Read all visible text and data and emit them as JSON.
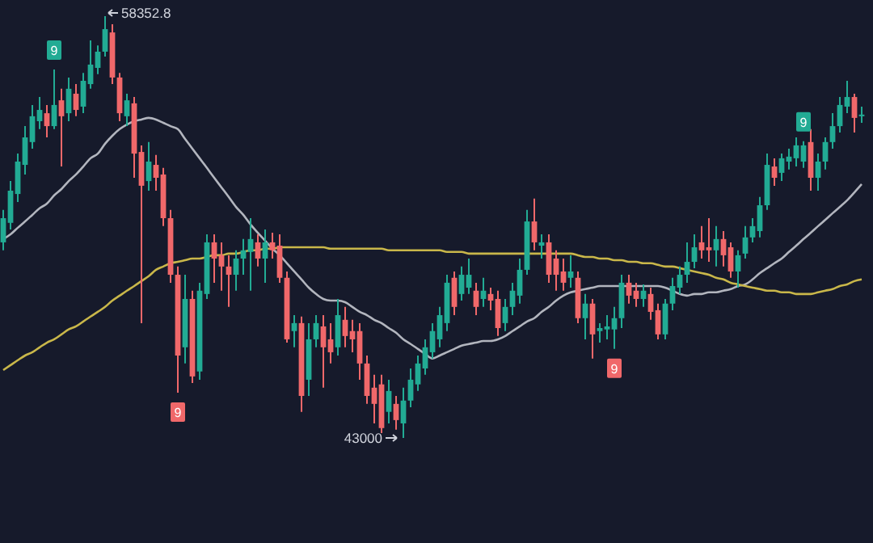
{
  "chart_data": {
    "type": "candlestick",
    "categories": [
      null,
      null,
      null,
      null,
      null,
      null,
      null,
      null,
      null,
      null,
      null,
      null,
      null,
      null,
      null,
      null,
      null,
      null,
      null,
      null,
      null,
      null,
      null,
      null,
      null,
      null,
      null,
      null,
      null,
      null,
      null,
      null,
      null,
      null,
      null,
      null,
      null,
      null,
      null,
      null,
      null,
      null,
      null,
      null,
      null,
      null,
      null,
      null,
      null,
      null,
      null,
      null,
      null,
      null,
      null,
      null,
      null,
      null,
      null,
      null,
      null,
      null,
      null,
      null,
      null,
      null,
      null,
      null,
      null,
      null,
      null,
      null,
      null,
      null,
      null,
      null,
      null,
      null,
      null,
      null,
      null,
      null,
      null,
      null,
      null,
      null,
      null,
      null,
      null,
      null,
      null,
      null,
      null,
      null,
      null,
      null,
      null,
      null,
      null,
      null,
      null,
      null,
      null,
      null,
      null,
      null,
      null,
      null,
      null,
      null,
      null,
      null,
      null,
      null,
      null,
      null,
      null,
      null,
      null
    ],
    "ohlc": [
      [
        50120,
        51300,
        49830,
        51000
      ],
      [
        50830,
        52350,
        50590,
        52000
      ],
      [
        51880,
        53350,
        51590,
        53060
      ],
      [
        52940,
        54350,
        52590,
        53940
      ],
      [
        53770,
        55120,
        53530,
        54710
      ],
      [
        54530,
        55410,
        54240,
        54940
      ],
      [
        54820,
        55120,
        53940,
        54350
      ],
      [
        54350,
        56410,
        54240,
        55120
      ],
      [
        55290,
        55710,
        52880,
        54710
      ],
      [
        54820,
        56120,
        54530,
        55710
      ],
      [
        55530,
        55880,
        54710,
        54940
      ],
      [
        55060,
        56290,
        54820,
        56000
      ],
      [
        55880,
        57470,
        55710,
        56590
      ],
      [
        56470,
        57290,
        56240,
        57060
      ],
      [
        57060,
        58352.8,
        56880,
        57880
      ],
      [
        57760,
        58060,
        55880,
        56120
      ],
      [
        56120,
        56290,
        54530,
        54820
      ],
      [
        54710,
        55530,
        54350,
        55290
      ],
      [
        55180,
        55410,
        52470,
        53350
      ],
      [
        53410,
        53650,
        47180,
        52180
      ],
      [
        52350,
        53770,
        52000,
        53060
      ],
      [
        52940,
        53300,
        52000,
        52470
      ],
      [
        52590,
        52830,
        50710,
        51000
      ],
      [
        51000,
        51300,
        48650,
        48940
      ],
      [
        48940,
        49240,
        44650,
        46000
      ],
      [
        46300,
        48940,
        45710,
        48060
      ],
      [
        48060,
        48360,
        45000,
        45240
      ],
      [
        45420,
        48650,
        45120,
        48360
      ],
      [
        48240,
        50410,
        48060,
        50120
      ],
      [
        50120,
        50410,
        48650,
        49530
      ],
      [
        49650,
        50120,
        48360,
        49240
      ],
      [
        49240,
        49650,
        47770,
        48940
      ],
      [
        48940,
        49830,
        48360,
        49530
      ],
      [
        49530,
        50240,
        48940,
        49830
      ],
      [
        49770,
        51000,
        48360,
        50240
      ],
      [
        50120,
        50410,
        49240,
        49530
      ],
      [
        49530,
        50590,
        48650,
        50120
      ],
      [
        50120,
        50470,
        49530,
        49830
      ],
      [
        50000,
        50410,
        48650,
        48830
      ],
      [
        48830,
        49060,
        46470,
        46590
      ],
      [
        46890,
        47470,
        46300,
        47180
      ],
      [
        47180,
        47420,
        43950,
        44530
      ],
      [
        45120,
        47180,
        44530,
        46590
      ],
      [
        46590,
        47470,
        46300,
        47180
      ],
      [
        47060,
        47470,
        44830,
        46300
      ],
      [
        46590,
        47180,
        45710,
        46120
      ],
      [
        46300,
        48060,
        46000,
        47470
      ],
      [
        47300,
        47770,
        46300,
        46710
      ],
      [
        46890,
        47300,
        46120,
        46590
      ],
      [
        46890,
        47180,
        45120,
        45710
      ],
      [
        45710,
        46000,
        44240,
        44530
      ],
      [
        44830,
        45300,
        43530,
        44240
      ],
      [
        44950,
        45300,
        43180,
        43360
      ],
      [
        43950,
        45120,
        43530,
        44710
      ],
      [
        44240,
        44530,
        43300,
        43650
      ],
      [
        43530,
        44830,
        43000,
        44360
      ],
      [
        44360,
        45530,
        44120,
        45120
      ],
      [
        44950,
        46000,
        44710,
        45710
      ],
      [
        45530,
        46590,
        45300,
        46300
      ],
      [
        46120,
        47180,
        45890,
        46890
      ],
      [
        46590,
        47770,
        46300,
        47470
      ],
      [
        47180,
        48940,
        46890,
        48650
      ],
      [
        48830,
        49060,
        47470,
        47770
      ],
      [
        48240,
        49240,
        48000,
        48940
      ],
      [
        48470,
        49530,
        48240,
        48940
      ],
      [
        48360,
        48650,
        47470,
        47770
      ],
      [
        48060,
        48830,
        47770,
        48360
      ],
      [
        48240,
        48470,
        47650,
        48000
      ],
      [
        48060,
        48360,
        46710,
        47000
      ],
      [
        47180,
        48060,
        46890,
        47770
      ],
      [
        47770,
        48650,
        47470,
        48360
      ],
      [
        48180,
        49530,
        47890,
        49120
      ],
      [
        49120,
        51300,
        48940,
        50880
      ],
      [
        50880,
        51710,
        49830,
        50120
      ],
      [
        50000,
        50410,
        49530,
        50120
      ],
      [
        50120,
        50410,
        48650,
        48940
      ],
      [
        49530,
        49830,
        48360,
        48940
      ],
      [
        49060,
        49530,
        48360,
        48650
      ],
      [
        48830,
        49650,
        48470,
        49060
      ],
      [
        48830,
        49060,
        47180,
        47360
      ],
      [
        47360,
        48240,
        46590,
        47890
      ],
      [
        47890,
        48060,
        45890,
        46770
      ],
      [
        46890,
        47180,
        46470,
        47000
      ],
      [
        46950,
        47470,
        46590,
        47060
      ],
      [
        46950,
        47770,
        46240,
        47360
      ],
      [
        47360,
        48940,
        47000,
        48650
      ],
      [
        48650,
        48940,
        47890,
        48180
      ],
      [
        48360,
        48650,
        47770,
        48060
      ],
      [
        48060,
        48590,
        47770,
        48360
      ],
      [
        48240,
        48470,
        47300,
        47590
      ],
      [
        47650,
        47890,
        46590,
        46770
      ],
      [
        46770,
        48060,
        46590,
        47890
      ],
      [
        47890,
        48830,
        47650,
        48530
      ],
      [
        48470,
        49240,
        48240,
        48940
      ],
      [
        48940,
        50120,
        48650,
        49410
      ],
      [
        49410,
        50410,
        49180,
        49940
      ],
      [
        50120,
        50710,
        49530,
        49830
      ],
      [
        49940,
        51000,
        49410,
        49830
      ],
      [
        49830,
        50710,
        49240,
        50240
      ],
      [
        50240,
        50530,
        49240,
        49650
      ],
      [
        49940,
        50120,
        48830,
        49060
      ],
      [
        49060,
        49830,
        48470,
        49650
      ],
      [
        49710,
        50710,
        49530,
        50300
      ],
      [
        50300,
        51000,
        50120,
        50710
      ],
      [
        50530,
        51770,
        50300,
        51470
      ],
      [
        51470,
        53350,
        51300,
        52940
      ],
      [
        52880,
        53180,
        52180,
        52470
      ],
      [
        52650,
        53350,
        52350,
        53180
      ],
      [
        53060,
        53530,
        52770,
        53240
      ],
      [
        53180,
        53940,
        52880,
        53650
      ],
      [
        53060,
        53800,
        52830,
        53650
      ],
      [
        53770,
        54240,
        52000,
        52470
      ],
      [
        52470,
        53350,
        52000,
        53060
      ],
      [
        53060,
        53940,
        52770,
        53770
      ],
      [
        53770,
        54820,
        53530,
        54350
      ],
      [
        54350,
        55410,
        54120,
        55120
      ],
      [
        55060,
        56000,
        54820,
        55410
      ],
      [
        55410,
        55530,
        54120,
        54650
      ],
      [
        54710,
        55060,
        54470,
        54770
      ]
    ],
    "series": [
      {
        "type": "line",
        "color": "#b2b5be",
        "values": [
          50240,
          50410,
          50650,
          50880,
          51120,
          51360,
          51530,
          51830,
          52060,
          52350,
          52590,
          52880,
          53180,
          53350,
          53710,
          54000,
          54240,
          54410,
          54530,
          54590,
          54650,
          54590,
          54470,
          54350,
          54240,
          53880,
          53530,
          53180,
          52830,
          52470,
          52120,
          51770,
          51410,
          51120,
          50770,
          50470,
          50180,
          49890,
          49650,
          49360,
          49060,
          48770,
          48470,
          48240,
          48060,
          48000,
          48000,
          47940,
          47770,
          47590,
          47470,
          47300,
          47180,
          47000,
          46830,
          46590,
          46420,
          46240,
          46060,
          45890,
          46000,
          46120,
          46240,
          46360,
          46420,
          46470,
          46530,
          46530,
          46590,
          46710,
          46890,
          47060,
          47240,
          47360,
          47590,
          47770,
          48000,
          48180,
          48300,
          48360,
          48420,
          48470,
          48530,
          48530,
          48530,
          48530,
          48530,
          48530,
          48530,
          48530,
          48530,
          48470,
          48360,
          48240,
          48180,
          48240,
          48240,
          48300,
          48300,
          48360,
          48420,
          48530,
          48590,
          48770,
          49000,
          49180,
          49360,
          49530,
          49770,
          50000,
          50240,
          50470,
          50710,
          50940,
          51180,
          51410,
          51650,
          51940,
          52240
        ]
      },
      {
        "type": "line",
        "color": "#c9b74a",
        "values": [
          45470,
          45650,
          45830,
          46000,
          46120,
          46300,
          46470,
          46590,
          46770,
          46950,
          47060,
          47240,
          47420,
          47590,
          47770,
          48000,
          48180,
          48360,
          48530,
          48710,
          48890,
          49120,
          49240,
          49360,
          49410,
          49470,
          49530,
          49530,
          49590,
          49650,
          49650,
          49710,
          49710,
          49770,
          49830,
          49830,
          49890,
          49890,
          49940,
          49940,
          49940,
          49940,
          49940,
          49940,
          49940,
          49890,
          49890,
          49890,
          49890,
          49890,
          49890,
          49890,
          49890,
          49830,
          49830,
          49830,
          49830,
          49830,
          49830,
          49830,
          49830,
          49770,
          49770,
          49770,
          49710,
          49710,
          49710,
          49710,
          49710,
          49710,
          49710,
          49710,
          49710,
          49710,
          49710,
          49710,
          49710,
          49710,
          49710,
          49650,
          49590,
          49590,
          49530,
          49530,
          49470,
          49470,
          49410,
          49410,
          49360,
          49360,
          49300,
          49240,
          49240,
          49180,
          49120,
          49060,
          49000,
          48940,
          48830,
          48770,
          48650,
          48590,
          48530,
          48470,
          48420,
          48360,
          48360,
          48300,
          48300,
          48240,
          48240,
          48240,
          48300,
          48360,
          48420,
          48530,
          48590,
          48710,
          48770
        ]
      }
    ],
    "annotations": [
      {
        "text": "9",
        "y": 56410
      },
      "58352.8",
      {
        "text": "9",
        "y": 44650
      },
      "43000",
      {
        "text": "9",
        "y": 46240
      },
      {
        "text": "9",
        "y": 53800
      }
    ]
  }
}
